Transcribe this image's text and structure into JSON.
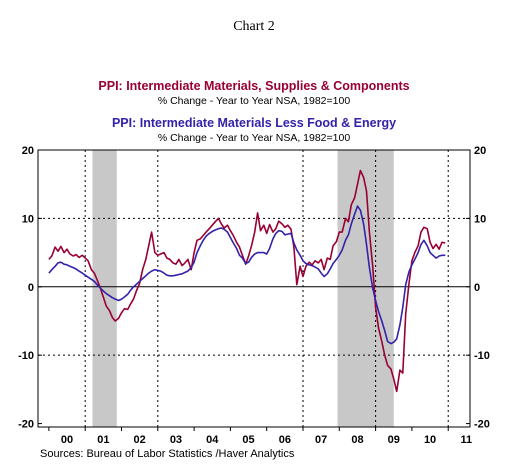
{
  "chart_data": {
    "type": "line",
    "title": "Chart 2",
    "series": [
      {
        "name": "PPI: Intermediate Materials, Supplies & Components",
        "subtitle": "% Change - Year to Year    NSA, 1982=100",
        "color": "#990033",
        "x": [
          2000.0,
          2000.08,
          2000.17,
          2000.25,
          2000.33,
          2000.42,
          2000.5,
          2000.58,
          2000.67,
          2000.75,
          2000.83,
          2000.92,
          2001.0,
          2001.08,
          2001.17,
          2001.25,
          2001.33,
          2001.42,
          2001.5,
          2001.58,
          2001.67,
          2001.75,
          2001.83,
          2001.92,
          2002.0,
          2002.08,
          2002.17,
          2002.25,
          2002.33,
          2002.42,
          2002.5,
          2002.58,
          2002.67,
          2002.75,
          2002.83,
          2002.92,
          2003.0,
          2003.08,
          2003.17,
          2003.25,
          2003.33,
          2003.42,
          2003.5,
          2003.58,
          2003.67,
          2003.75,
          2003.83,
          2003.92,
          2004.0,
          2004.08,
          2004.17,
          2004.25,
          2004.33,
          2004.42,
          2004.5,
          2004.58,
          2004.67,
          2004.75,
          2004.83,
          2004.92,
          2005.0,
          2005.08,
          2005.17,
          2005.25,
          2005.33,
          2005.42,
          2005.5,
          2005.58,
          2005.67,
          2005.75,
          2005.83,
          2005.92,
          2006.0,
          2006.08,
          2006.17,
          2006.25,
          2006.33,
          2006.42,
          2006.5,
          2006.58,
          2006.67,
          2006.75,
          2006.83,
          2006.92,
          2007.0,
          2007.08,
          2007.17,
          2007.25,
          2007.33,
          2007.42,
          2007.5,
          2007.58,
          2007.67,
          2007.75,
          2007.83,
          2007.92,
          2008.0,
          2008.08,
          2008.17,
          2008.25,
          2008.33,
          2008.42,
          2008.5,
          2008.58,
          2008.67,
          2008.75,
          2008.83,
          2008.92,
          2009.0,
          2009.08,
          2009.17,
          2009.25,
          2009.33,
          2009.42,
          2009.5,
          2009.58,
          2009.67,
          2009.75,
          2009.83,
          2009.92,
          2010.0,
          2010.08,
          2010.17,
          2010.25,
          2010.33,
          2010.42,
          2010.5,
          2010.58,
          2010.67,
          2010.75,
          2010.83,
          2010.92
        ],
        "y": [
          4.0,
          4.5,
          5.8,
          5.2,
          5.9,
          5.0,
          5.5,
          4.8,
          4.5,
          4.7,
          4.3,
          4.6,
          4.2,
          3.8,
          2.5,
          2.0,
          1.0,
          -0.2,
          -1.5,
          -2.8,
          -3.5,
          -4.5,
          -5.0,
          -4.6,
          -3.8,
          -3.2,
          -3.3,
          -2.5,
          -1.8,
          -0.5,
          0.5,
          2.5,
          4.0,
          6.0,
          8.0,
          5.0,
          4.6,
          4.8,
          5.0,
          4.2,
          4.0,
          3.5,
          3.3,
          4.0,
          3.1,
          3.5,
          4.0,
          2.5,
          5.0,
          6.8,
          7.0,
          7.5,
          8.0,
          8.5,
          9.0,
          9.5,
          10.0,
          9.2,
          8.6,
          9.0,
          8.2,
          7.5,
          6.5,
          5.8,
          4.6,
          3.3,
          4.5,
          6.0,
          8.0,
          10.8,
          8.2,
          9.0,
          7.8,
          9.1,
          8.0,
          8.5,
          9.6,
          9.2,
          8.7,
          9.0,
          8.4,
          5.8,
          0.3,
          3.0,
          1.5,
          3.0,
          3.6,
          3.2,
          3.8,
          3.5,
          4.0,
          2.5,
          4.2,
          4.0,
          6.0,
          6.6,
          8.0,
          8.0,
          10.0,
          9.5,
          12.0,
          13.0,
          15.0,
          17.0,
          16.0,
          14.0,
          8.0,
          3.0,
          -3.0,
          -6.0,
          -8.0,
          -10.0,
          -11.5,
          -12.0,
          -13.5,
          -15.3,
          -12.2,
          -12.6,
          -4.0,
          0.5,
          3.8,
          5.0,
          6.0,
          8.0,
          8.7,
          8.5,
          6.5,
          5.6,
          6.2,
          5.5,
          6.5,
          6.4
        ]
      },
      {
        "name": "PPI: Intermediate Materials Less Food & Energy",
        "subtitle": "% Change - Year to Year    NSA, 1982=100",
        "color": "#3322aa",
        "x": [
          2000.0,
          2000.08,
          2000.17,
          2000.25,
          2000.33,
          2000.42,
          2000.5,
          2000.58,
          2000.67,
          2000.75,
          2000.83,
          2000.92,
          2001.0,
          2001.08,
          2001.17,
          2001.25,
          2001.33,
          2001.42,
          2001.5,
          2001.58,
          2001.67,
          2001.75,
          2001.83,
          2001.92,
          2002.0,
          2002.08,
          2002.17,
          2002.25,
          2002.33,
          2002.42,
          2002.5,
          2002.58,
          2002.67,
          2002.75,
          2002.83,
          2002.92,
          2003.0,
          2003.08,
          2003.17,
          2003.25,
          2003.33,
          2003.42,
          2003.5,
          2003.58,
          2003.67,
          2003.75,
          2003.83,
          2003.92,
          2004.0,
          2004.08,
          2004.17,
          2004.25,
          2004.33,
          2004.42,
          2004.5,
          2004.58,
          2004.67,
          2004.75,
          2004.83,
          2004.92,
          2005.0,
          2005.08,
          2005.17,
          2005.25,
          2005.33,
          2005.42,
          2005.5,
          2005.58,
          2005.67,
          2005.75,
          2005.83,
          2005.92,
          2006.0,
          2006.08,
          2006.17,
          2006.25,
          2006.33,
          2006.42,
          2006.5,
          2006.58,
          2006.67,
          2006.75,
          2006.83,
          2006.92,
          2007.0,
          2007.08,
          2007.17,
          2007.25,
          2007.33,
          2007.42,
          2007.5,
          2007.58,
          2007.67,
          2007.75,
          2007.83,
          2007.92,
          2008.0,
          2008.08,
          2008.17,
          2008.25,
          2008.33,
          2008.42,
          2008.5,
          2008.58,
          2008.67,
          2008.75,
          2008.83,
          2008.92,
          2009.0,
          2009.08,
          2009.17,
          2009.25,
          2009.33,
          2009.42,
          2009.5,
          2009.58,
          2009.67,
          2009.75,
          2009.83,
          2009.92,
          2010.0,
          2010.08,
          2010.17,
          2010.25,
          2010.33,
          2010.42,
          2010.5,
          2010.58,
          2010.67,
          2010.75,
          2010.83,
          2010.92
        ],
        "y": [
          2.0,
          2.5,
          3.0,
          3.5,
          3.6,
          3.3,
          3.2,
          3.0,
          2.8,
          2.6,
          2.3,
          2.0,
          1.7,
          1.4,
          1.1,
          0.8,
          0.3,
          -0.2,
          -0.6,
          -1.0,
          -1.3,
          -1.6,
          -1.8,
          -2.0,
          -1.8,
          -1.5,
          -1.1,
          -0.5,
          0.0,
          0.4,
          0.8,
          1.2,
          1.6,
          2.0,
          2.3,
          2.5,
          2.4,
          2.3,
          2.0,
          1.7,
          1.6,
          1.6,
          1.7,
          1.8,
          1.9,
          2.1,
          2.3,
          2.8,
          3.6,
          5.0,
          6.0,
          6.8,
          7.4,
          7.8,
          8.1,
          8.3,
          8.5,
          8.6,
          8.4,
          8.0,
          7.2,
          6.4,
          5.6,
          4.6,
          4.2,
          3.4,
          3.6,
          4.3,
          4.8,
          5.0,
          5.0,
          5.0,
          4.8,
          5.6,
          7.0,
          7.8,
          8.2,
          8.1,
          7.6,
          7.7,
          7.8,
          6.4,
          5.4,
          4.6,
          3.8,
          3.4,
          3.2,
          3.1,
          2.9,
          2.6,
          2.0,
          1.5,
          1.9,
          2.6,
          3.4,
          4.0,
          4.6,
          5.4,
          6.8,
          7.6,
          9.2,
          10.6,
          11.8,
          11.2,
          9.2,
          6.2,
          2.8,
          -0.2,
          -2.0,
          -3.6,
          -5.0,
          -6.4,
          -8.0,
          -8.3,
          -8.1,
          -7.6,
          -5.6,
          -3.0,
          0.3,
          2.2,
          3.2,
          4.0,
          5.0,
          6.2,
          6.8,
          6.0,
          5.0,
          4.6,
          4.2,
          4.5,
          4.6,
          4.6
        ]
      }
    ],
    "recessions": [
      [
        2001.2,
        2001.87
      ],
      [
        2007.95,
        2009.5
      ]
    ],
    "xlim": [
      1999.7,
      2011.6
    ],
    "ylim": [
      -20.5,
      20
    ],
    "yticks": [
      -20,
      -10,
      0,
      10,
      20
    ],
    "x_tick_labels": [
      "00",
      "01",
      "02",
      "03",
      "04",
      "05",
      "06",
      "07",
      "08",
      "09",
      "10",
      "11"
    ],
    "x_tick_years": [
      2000,
      2001,
      2002,
      2003,
      2004,
      2005,
      2006,
      2007,
      2008,
      2009,
      2010,
      2011
    ],
    "dashed_years": [
      2001,
      2003,
      2007,
      2009,
      2011
    ],
    "grid": "dashed at ±10 and selected years",
    "legend": "top-center",
    "source": "Sources:  Bureau of Labor Statistics /Haver Analytics"
  }
}
